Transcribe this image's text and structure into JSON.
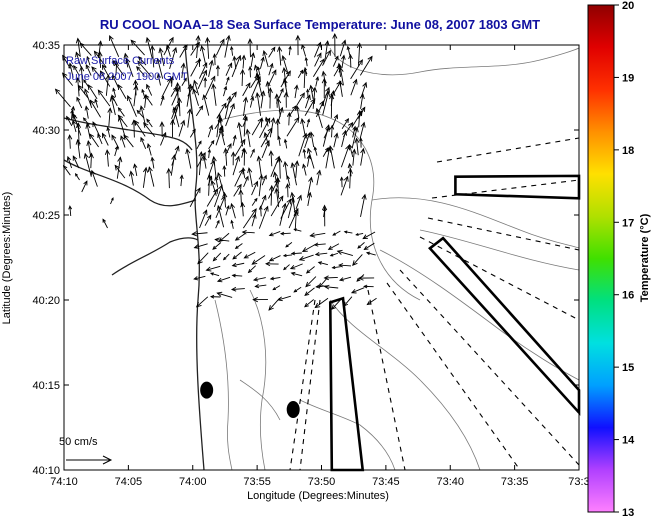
{
  "chart_data": {
    "type": "vector-field",
    "title": "RU COOL  NOAA–18  Sea Surface Temperature:  June 08, 2007 1803 GMT",
    "xlabel": "Longitude (Degrees:Minutes)",
    "ylabel": "Latitude (Degrees:Minutes)",
    "x_ticks": [
      "74:10",
      "74:05",
      "74:00",
      "73:55",
      "73:50",
      "73:45",
      "73:40",
      "73:35",
      "73:3"
    ],
    "y_ticks": [
      "40:35",
      "40:30",
      "40:25",
      "40:20",
      "40:15",
      "40:10"
    ],
    "xlim_minutes_west": [
      -74.1667,
      -73.5
    ],
    "ylim_degrees": [
      40.1667,
      40.5833
    ],
    "annotation_lines": [
      "Raw Surface Currents",
      "June 08 2007 1900 GMT"
    ],
    "scale_label": "50 cm/s",
    "colorbar": {
      "label": "Temperature (°C)",
      "ticks": [
        "20",
        "19",
        "18",
        "17",
        "16",
        "15",
        "14",
        "13"
      ],
      "min": 13,
      "max": 20,
      "colors": [
        "#ff80ff",
        "#b040ff",
        "#1010ff",
        "#00a0ff",
        "#00e0e0",
        "#00e080",
        "#40e000",
        "#b0e000",
        "#ffe000",
        "#ff9000",
        "#ff3000",
        "#e00000",
        "#900000"
      ]
    },
    "buoys": [
      {
        "lon": -73.982,
        "lat": 40.245
      },
      {
        "lon": -73.87,
        "lat": 40.226
      }
    ],
    "sampling_boxes": [
      {
        "corners": [
          [
            -73.66,
            40.4542
          ],
          [
            -73.5,
            40.455
          ],
          [
            -73.5,
            40.433
          ],
          [
            -73.66,
            40.437
          ]
        ]
      },
      {
        "corners": [
          [
            -73.676,
            40.394
          ],
          [
            -73.5,
            40.245
          ],
          [
            -73.5,
            40.223
          ],
          [
            -73.693,
            40.384
          ]
        ]
      },
      {
        "corners": [
          [
            -73.822,
            40.331
          ],
          [
            -73.8055,
            40.335
          ],
          [
            -73.78,
            40.1667
          ],
          [
            -73.82,
            40.1667
          ]
        ]
      }
    ],
    "current_vectors": []
  }
}
